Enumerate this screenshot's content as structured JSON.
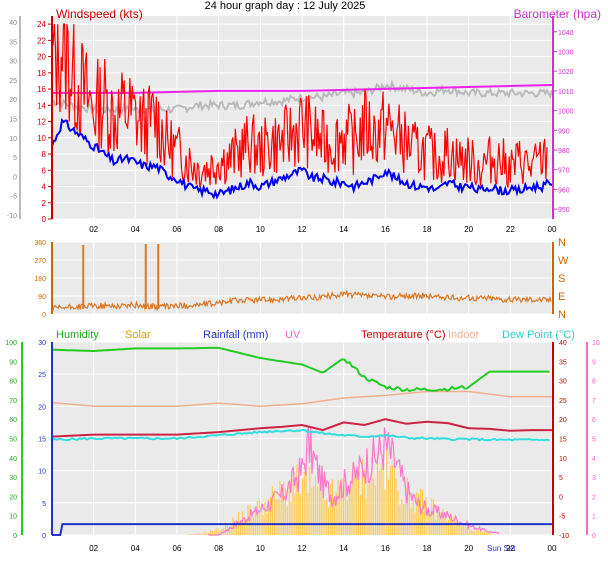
{
  "header": {
    "title": "24 hour graph day : 12 July 2025"
  },
  "colors": {
    "wind_axis": "#cc0000",
    "baro_axis": "#cc33cc",
    "dir_axis": "#cc6600",
    "humidity": "#00bb00",
    "solar": "#d4a000",
    "rain": "#0000cc",
    "uv": "#ff66cc",
    "temp": "#cc0000",
    "indoor": "#f0b090",
    "dew": "#33cccc",
    "plot_bg": "#eaeaea",
    "grid": "#ffffff"
  },
  "time_axis": {
    "range": [
      0,
      24
    ],
    "ticks": [
      "02",
      "04",
      "06",
      "08",
      "10",
      "12",
      "14",
      "16",
      "18",
      "20",
      "22",
      "00"
    ],
    "sunrise_sunset_label": "Sun Set"
  },
  "chart_data": [
    {
      "type": "line",
      "id": "wind",
      "title": "",
      "labels": {
        "left": "Windspeed (kts)",
        "right": "Barometer (hpa)"
      },
      "left_ticks": [
        "24",
        "22",
        "20",
        "18",
        "16",
        "14",
        "12",
        "10",
        "8",
        "6",
        "4",
        "2",
        "0"
      ],
      "outer_ticks": [
        "40",
        "35",
        "30",
        "25",
        "20",
        "15",
        "10",
        "5",
        "0",
        "-5",
        "-10"
      ],
      "right_ticks": [
        "1040",
        "1030",
        "1020",
        "1010",
        "1000",
        "990",
        "980",
        "970",
        "960",
        "950"
      ],
      "ylim_wind": [
        0,
        25
      ],
      "ylim_baro": [
        945,
        1048
      ],
      "series": [
        {
          "name": "Windspeed (kts)",
          "key": "gust",
          "color": "#ff0000",
          "x": [
            0,
            0.5,
            1,
            1.5,
            2,
            2.5,
            3,
            3.5,
            4,
            4.5,
            5,
            5.5,
            6,
            6.5,
            7,
            7.5,
            8,
            8.5,
            9,
            9.5,
            10,
            10.5,
            11,
            11.5,
            12,
            12.5,
            13,
            13.5,
            14,
            14.5,
            15,
            15.5,
            16,
            16.5,
            17,
            17.5,
            18,
            18.5,
            19,
            19.5,
            20,
            20.5,
            21,
            21.5,
            22,
            22.5,
            23,
            23.5
          ],
          "y": [
            19,
            21,
            17,
            15,
            13,
            14,
            12,
            13,
            12,
            11,
            12,
            9,
            8,
            7,
            6,
            6,
            7,
            7,
            8,
            9,
            8,
            9,
            9,
            10,
            11,
            10,
            9,
            9,
            10,
            9,
            11,
            10,
            11,
            10,
            9,
            8,
            8,
            7,
            8,
            7,
            7,
            6,
            7,
            7,
            6,
            7,
            6,
            7
          ]
        },
        {
          "name": "",
          "key": "avg",
          "color": "#0000ee",
          "x": [
            0,
            0.5,
            1,
            1.5,
            2,
            2.5,
            3,
            3.5,
            4,
            4.5,
            5,
            5.5,
            6,
            6.5,
            7,
            7.5,
            8,
            8.5,
            9,
            9.5,
            10,
            10.5,
            11,
            11.5,
            12,
            12.5,
            13,
            13.5,
            14,
            14.5,
            15,
            15.5,
            16,
            16.5,
            17,
            17.5,
            18,
            18.5,
            19,
            19.5,
            20,
            20.5,
            21,
            21.5,
            22,
            22.5,
            23,
            23.5,
            24
          ],
          "y": [
            9,
            12,
            11,
            10,
            9,
            8,
            7,
            7.5,
            7,
            6.5,
            6.5,
            5.5,
            5,
            4,
            3.5,
            3.5,
            3,
            3.5,
            4,
            4.5,
            4,
            4.5,
            5,
            5.5,
            6,
            5,
            5,
            4.5,
            4.5,
            4,
            4.5,
            5,
            6,
            5,
            4.5,
            4,
            4,
            3.5,
            4.5,
            4,
            4,
            3.5,
            4,
            3.5,
            3.5,
            3.5,
            4,
            4,
            4.5
          ]
        },
        {
          "name": "Barometer (hpa)",
          "key": "baro",
          "color": "#ee22ee",
          "x": [
            0,
            4,
            8,
            12,
            16,
            20,
            24
          ],
          "y": [
            1009,
            1009,
            1010,
            1010,
            1011,
            1012,
            1013
          ]
        },
        {
          "name": "",
          "key": "baro_grey",
          "color": "#bbbbbb",
          "x": [
            0,
            1,
            2,
            3,
            4,
            5,
            6,
            7,
            8,
            9,
            10,
            11,
            12,
            13,
            14,
            15,
            16,
            17,
            18,
            19,
            20,
            21,
            22,
            23,
            24
          ],
          "y": [
            14.5,
            14,
            13.5,
            13.5,
            13.5,
            13.5,
            13.5,
            14,
            14,
            14,
            14.5,
            14.5,
            15,
            15,
            15.5,
            15.5,
            16.5,
            16,
            15.5,
            16,
            15.5,
            15.5,
            15.5,
            15.5,
            15.5
          ]
        }
      ]
    },
    {
      "type": "scatter",
      "id": "direction",
      "title": "",
      "left_ticks": [
        "360",
        "270",
        "180",
        "90",
        "0"
      ],
      "right_ticks": [
        "N",
        "W",
        "S",
        "E",
        "N"
      ],
      "ylim": [
        0,
        360
      ],
      "series": [
        {
          "name": "",
          "key": "dir",
          "color": "#dd7722",
          "x": [
            0,
            1,
            2,
            3,
            4,
            5,
            6,
            7,
            8,
            9,
            10,
            11,
            12,
            13,
            14,
            15,
            16,
            17,
            18,
            19,
            20,
            21,
            22,
            23,
            24
          ],
          "y": [
            25,
            35,
            40,
            40,
            45,
            35,
            40,
            45,
            55,
            70,
            70,
            75,
            80,
            85,
            100,
            90,
            85,
            90,
            90,
            80,
            80,
            80,
            70,
            75,
            70
          ]
        },
        {
          "name": "",
          "key": "spikes",
          "color": "#dd7722",
          "x": [
            1.5,
            4.5,
            5.1
          ],
          "y": [
            345,
            350,
            350
          ]
        }
      ]
    },
    {
      "type": "line",
      "id": "climate",
      "title": "",
      "labels": [
        "Humidity",
        "Solar",
        "Rainfall (mm)",
        "UV",
        "Temperature (°C)",
        "Indoor",
        "Dew Point (°C)"
      ],
      "humidity_ticks": [
        "100",
        "90",
        "80",
        "70",
        "60",
        "50",
        "40",
        "30",
        "20",
        "10",
        "0"
      ],
      "rain_ticks": [
        "30",
        "25",
        "20",
        "15",
        "10",
        "5",
        "0"
      ],
      "temp_ticks": [
        "40",
        "35",
        "30",
        "25",
        "20",
        "15",
        "10",
        "5",
        "0",
        "-5",
        "-10"
      ],
      "uv_ticks": [
        "10",
        "9",
        "8",
        "7",
        "6",
        "5",
        "4",
        "3",
        "2",
        "1",
        "0"
      ],
      "ylim_rain": [
        0,
        30
      ],
      "series": [
        {
          "name": "Humidity",
          "key": "humidity",
          "color": "#22cc22",
          "x": [
            0,
            2,
            4,
            6,
            8,
            10,
            12,
            13,
            14,
            15,
            16,
            17,
            18,
            19,
            20,
            21,
            22,
            23,
            24
          ],
          "y": [
            28.8,
            28.6,
            29,
            29,
            29.1,
            27.5,
            26.5,
            25.2,
            27.5,
            24.5,
            23,
            22.6,
            22.6,
            22.7,
            23,
            25.4,
            25.4,
            25.4,
            25.4
          ]
        },
        {
          "name": "Indoor",
          "key": "indoor",
          "color": "#f0b090",
          "x": [
            0,
            2,
            4,
            6,
            8,
            10,
            12,
            14,
            16,
            18,
            20,
            22,
            24
          ],
          "y": [
            20.6,
            20,
            20,
            20,
            20.5,
            20,
            20.4,
            21.3,
            21.7,
            22.3,
            22.3,
            21.5,
            21.5
          ]
        },
        {
          "name": "Temperature (°C)",
          "key": "temp",
          "color": "#cc2244",
          "x": [
            0,
            2,
            4,
            6,
            8,
            10,
            11,
            12,
            13,
            14,
            15,
            16,
            17,
            18,
            19,
            20,
            21,
            22,
            23,
            24
          ],
          "y": [
            15.3,
            15.6,
            15.6,
            15.6,
            16,
            16.6,
            16.8,
            17.1,
            16.3,
            17.5,
            17.1,
            18,
            17.3,
            17.6,
            17.4,
            16.6,
            16.5,
            16.2,
            16.3,
            16.3
          ]
        },
        {
          "name": "Dew Point (°C)",
          "key": "dew",
          "color": "#33dddd",
          "x": [
            0,
            2,
            4,
            6,
            8,
            10,
            11,
            12,
            13,
            14,
            15,
            16,
            17,
            18,
            19,
            20,
            21,
            22,
            23,
            24
          ],
          "y": [
            14.8,
            15,
            15,
            15,
            15.5,
            16,
            16.2,
            16.3,
            15.8,
            15.5,
            15.3,
            15.5,
            15.1,
            15,
            14.9,
            14.9,
            14.8,
            14.8,
            14.8,
            14.8
          ]
        },
        {
          "name": "Rainfall (mm)",
          "key": "rain",
          "color": "#2233cc",
          "x": [
            0,
            0.4,
            0.5,
            8,
            12,
            16,
            20,
            24
          ],
          "y": [
            0,
            0,
            1.7,
            1.7,
            1.7,
            1.7,
            1.7,
            1.7
          ]
        },
        {
          "name": "Solar",
          "key": "solar",
          "color": "#ffcc55",
          "x": [
            0,
            6,
            7,
            8,
            9,
            10,
            11,
            12,
            12.5,
            13,
            13.5,
            14,
            14.5,
            15,
            15.5,
            16,
            16.5,
            17,
            17.5,
            18,
            19,
            20,
            21,
            22,
            24
          ],
          "y": [
            0,
            0,
            0.2,
            1,
            3,
            5,
            7,
            9,
            8,
            6,
            7,
            8,
            9,
            10,
            11,
            11,
            9,
            7,
            6,
            5,
            3,
            1,
            0.3,
            0,
            0
          ]
        },
        {
          "name": "UV",
          "key": "uv",
          "color": "#ff77cc",
          "x": [
            0,
            8,
            9,
            10,
            11,
            12,
            12.3,
            13,
            13.5,
            14,
            14.5,
            15,
            15.5,
            16,
            16.5,
            17,
            17.5,
            18,
            19,
            20,
            21,
            22,
            24
          ],
          "y": [
            0,
            0,
            2,
            4,
            6,
            10,
            14,
            8,
            6,
            8,
            9,
            11,
            12,
            14,
            11,
            7,
            5,
            4,
            3,
            1.5,
            0.5,
            0,
            0
          ]
        }
      ]
    }
  ]
}
